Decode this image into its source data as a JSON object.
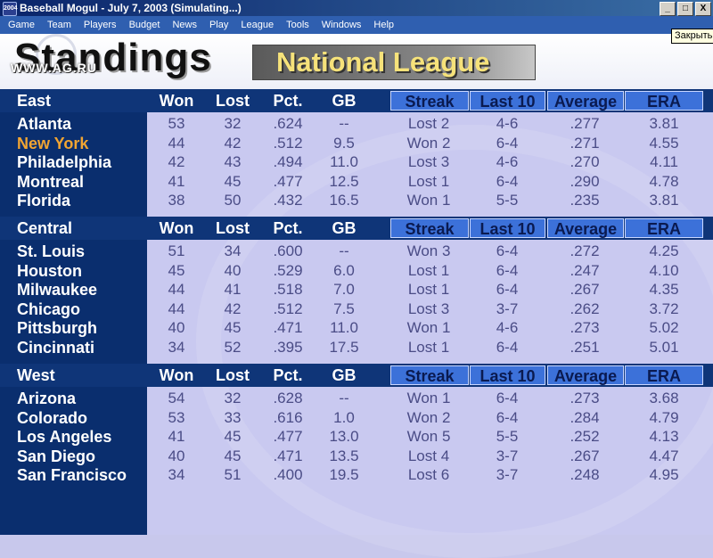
{
  "window": {
    "title": "Baseball Mogul - July 7, 2003  (Simulating...)",
    "icon_text": "2004",
    "buttons": [
      "_",
      "□",
      "X"
    ]
  },
  "menu": [
    "Game",
    "Team",
    "Players",
    "Budget",
    "News",
    "Play",
    "League",
    "Tools",
    "Windows",
    "Help"
  ],
  "tooltip": "Закрыть",
  "header": {
    "title": "Standings",
    "watermark": "WWW.AG.RU",
    "league": "National League"
  },
  "columns": {
    "won": "Won",
    "lost": "Lost",
    "pct": "Pct.",
    "gb": "GB",
    "streak": "Streak",
    "last10": "Last 10",
    "average": "Average",
    "era": "ERA"
  },
  "divisions": [
    {
      "name": "East",
      "teams": [
        {
          "name": "Atlanta",
          "won": "53",
          "lost": "32",
          "pct": ".624",
          "gb": "--",
          "streak": "Lost 2",
          "last10": "4-6",
          "average": ".277",
          "era": "3.81",
          "highlight": false
        },
        {
          "name": "New York",
          "won": "44",
          "lost": "42",
          "pct": ".512",
          "gb": "9.5",
          "streak": "Won 2",
          "last10": "6-4",
          "average": ".271",
          "era": "4.55",
          "highlight": true
        },
        {
          "name": "Philadelphia",
          "won": "42",
          "lost": "43",
          "pct": ".494",
          "gb": "11.0",
          "streak": "Lost 3",
          "last10": "4-6",
          "average": ".270",
          "era": "4.11",
          "highlight": false
        },
        {
          "name": "Montreal",
          "won": "41",
          "lost": "45",
          "pct": ".477",
          "gb": "12.5",
          "streak": "Lost 1",
          "last10": "6-4",
          "average": ".290",
          "era": "4.78",
          "highlight": false
        },
        {
          "name": "Florida",
          "won": "38",
          "lost": "50",
          "pct": ".432",
          "gb": "16.5",
          "streak": "Won 1",
          "last10": "5-5",
          "average": ".235",
          "era": "3.81",
          "highlight": false
        }
      ]
    },
    {
      "name": "Central",
      "teams": [
        {
          "name": "St. Louis",
          "won": "51",
          "lost": "34",
          "pct": ".600",
          "gb": "--",
          "streak": "Won 3",
          "last10": "6-4",
          "average": ".272",
          "era": "4.25",
          "highlight": false
        },
        {
          "name": "Houston",
          "won": "45",
          "lost": "40",
          "pct": ".529",
          "gb": "6.0",
          "streak": "Lost 1",
          "last10": "6-4",
          "average": ".247",
          "era": "4.10",
          "highlight": false
        },
        {
          "name": "Milwaukee",
          "won": "44",
          "lost": "41",
          "pct": ".518",
          "gb": "7.0",
          "streak": "Lost 1",
          "last10": "6-4",
          "average": ".267",
          "era": "4.35",
          "highlight": false
        },
        {
          "name": "Chicago",
          "won": "44",
          "lost": "42",
          "pct": ".512",
          "gb": "7.5",
          "streak": "Lost 3",
          "last10": "3-7",
          "average": ".262",
          "era": "3.72",
          "highlight": false
        },
        {
          "name": "Pittsburgh",
          "won": "40",
          "lost": "45",
          "pct": ".471",
          "gb": "11.0",
          "streak": "Won 1",
          "last10": "4-6",
          "average": ".273",
          "era": "5.02",
          "highlight": false
        },
        {
          "name": "Cincinnati",
          "won": "34",
          "lost": "52",
          "pct": ".395",
          "gb": "17.5",
          "streak": "Lost 1",
          "last10": "6-4",
          "average": ".251",
          "era": "5.01",
          "highlight": false
        }
      ]
    },
    {
      "name": "West",
      "teams": [
        {
          "name": "Arizona",
          "won": "54",
          "lost": "32",
          "pct": ".628",
          "gb": "--",
          "streak": "Won 1",
          "last10": "6-4",
          "average": ".273",
          "era": "3.68",
          "highlight": false
        },
        {
          "name": "Colorado",
          "won": "53",
          "lost": "33",
          "pct": ".616",
          "gb": "1.0",
          "streak": "Won 2",
          "last10": "6-4",
          "average": ".284",
          "era": "4.79",
          "highlight": false
        },
        {
          "name": "Los Angeles",
          "won": "41",
          "lost": "45",
          "pct": ".477",
          "gb": "13.0",
          "streak": "Won 5",
          "last10": "5-5",
          "average": ".252",
          "era": "4.13",
          "highlight": false
        },
        {
          "name": "San Diego",
          "won": "40",
          "lost": "45",
          "pct": ".471",
          "gb": "13.5",
          "streak": "Lost 4",
          "last10": "3-7",
          "average": ".267",
          "era": "4.47",
          "highlight": false
        },
        {
          "name": "San Francisco",
          "won": "34",
          "lost": "51",
          "pct": ".400",
          "gb": "19.5",
          "streak": "Lost 6",
          "last10": "3-7",
          "average": ".248",
          "era": "4.95",
          "highlight": false
        }
      ]
    }
  ]
}
